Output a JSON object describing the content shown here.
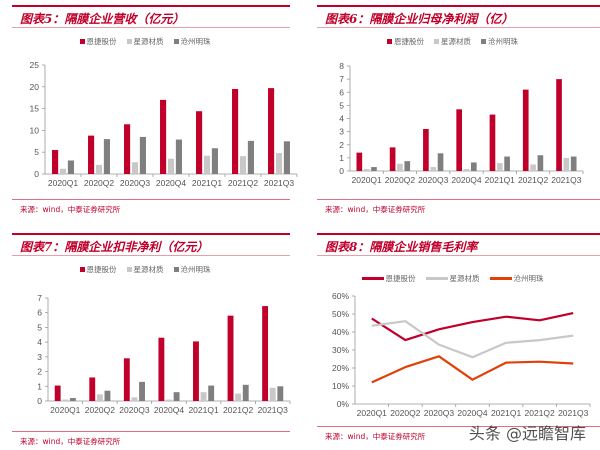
{
  "colors": {
    "red": "#c0002b",
    "lightgray": "#c8c8c8",
    "darkgray": "#7f7f7f",
    "orange": "#e0400a",
    "accent": "#c0002b"
  },
  "source_text": "来源：wind，中泰证券研究所",
  "watermark": "头条 @远瞻智库",
  "panels": [
    {
      "title": "图表5：隔膜企业营收（亿元）"
    },
    {
      "title": "图表6：隔膜企业归母净利润（亿）"
    },
    {
      "title": "图表7：隔膜企业扣非净利（亿元）"
    },
    {
      "title": "图表8：隔膜企业销售毛利率"
    }
  ],
  "legend": [
    "恩捷股份",
    "星源材质",
    "沧州明珠"
  ],
  "chart_data": [
    {
      "type": "bar",
      "title": "图表5：隔膜企业营收（亿元）",
      "xlabel": "",
      "ylabel": "",
      "categories": [
        "2020Q1",
        "2020Q2",
        "2020Q3",
        "2020Q4",
        "2021Q1",
        "2021Q2",
        "2021Q3"
      ],
      "series": [
        {
          "name": "恩捷股份",
          "values": [
            5.5,
            8.8,
            11.4,
            17.0,
            14.4,
            19.5,
            19.7
          ]
        },
        {
          "name": "星源材质",
          "values": [
            1.2,
            2.1,
            2.7,
            3.5,
            4.2,
            4.1,
            4.8
          ]
        },
        {
          "name": "沧州明珠",
          "values": [
            3.1,
            8.0,
            8.5,
            7.9,
            5.9,
            7.6,
            7.5
          ]
        }
      ],
      "ylim": [
        0,
        25
      ],
      "yticks": [
        0,
        5,
        10,
        15,
        20,
        25
      ],
      "legend_position": "top",
      "grid": false
    },
    {
      "type": "bar",
      "title": "图表6：隔膜企业归母净利润（亿）",
      "xlabel": "",
      "ylabel": "",
      "categories": [
        "2020Q1",
        "2020Q2",
        "2020Q3",
        "2020Q4",
        "2021Q1",
        "2021Q2",
        "2021Q3"
      ],
      "series": [
        {
          "name": "恩捷股份",
          "values": [
            1.4,
            1.8,
            3.2,
            4.7,
            4.3,
            6.2,
            7.0
          ]
        },
        {
          "name": "星源材质",
          "values": [
            0.15,
            0.55,
            0.3,
            0.15,
            0.6,
            0.5,
            1.0
          ]
        },
        {
          "name": "沧州明珠",
          "values": [
            0.3,
            0.75,
            1.35,
            0.65,
            1.1,
            1.2,
            1.1
          ]
        }
      ],
      "ylim": [
        0,
        8
      ],
      "yticks": [
        0,
        1,
        2,
        3,
        4,
        5,
        6,
        7,
        8
      ],
      "legend_position": "top",
      "grid": false
    },
    {
      "type": "bar",
      "title": "图表7：隔膜企业扣非净利（亿元）",
      "xlabel": "",
      "ylabel": "",
      "categories": [
        "2020Q1",
        "2020Q2",
        "2020Q3",
        "2020Q4",
        "2021Q1",
        "2021Q2",
        "2021Q3"
      ],
      "series": [
        {
          "name": "恩捷股份",
          "values": [
            1.05,
            1.6,
            2.9,
            4.3,
            4.05,
            5.8,
            6.45
          ]
        },
        {
          "name": "星源材质",
          "values": [
            0.1,
            0.45,
            0.25,
            0.1,
            0.6,
            0.5,
            0.9
          ]
        },
        {
          "name": "沧州明珠",
          "values": [
            0.2,
            0.7,
            1.3,
            0.6,
            1.05,
            1.1,
            1.0
          ]
        }
      ],
      "ylim": [
        0,
        7
      ],
      "yticks": [
        0,
        1,
        2,
        3,
        4,
        5,
        6,
        7
      ],
      "legend_position": "top",
      "grid": false
    },
    {
      "type": "line",
      "title": "图表8：隔膜企业销售毛利率",
      "xlabel": "",
      "ylabel": "",
      "categories": [
        "2020Q1",
        "2020Q2",
        "2020Q3",
        "2020Q4",
        "2021Q1",
        "2021Q2",
        "2021Q3"
      ],
      "series": [
        {
          "name": "恩捷股份",
          "values": [
            47.5,
            35.5,
            41.5,
            45.5,
            48.5,
            46.5,
            50.5
          ]
        },
        {
          "name": "星源材质",
          "values": [
            43.5,
            46.0,
            33.0,
            26.0,
            34.0,
            35.5,
            38.0
          ]
        },
        {
          "name": "沧州明珠",
          "values": [
            12.0,
            20.5,
            26.5,
            13.5,
            23.0,
            23.5,
            22.5
          ]
        }
      ],
      "ylim": [
        0,
        60
      ],
      "yticks": [
        "0%",
        "10%",
        "20%",
        "30%",
        "40%",
        "50%",
        "60%"
      ],
      "legend_position": "top",
      "grid": false
    }
  ]
}
